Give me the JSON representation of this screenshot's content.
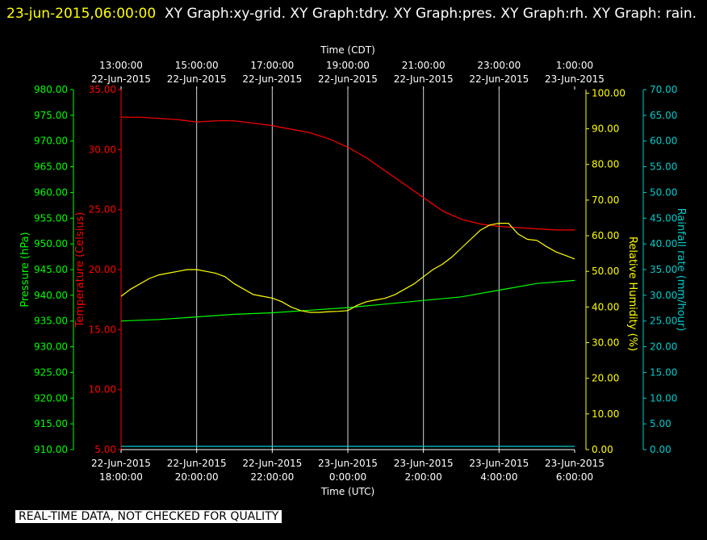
{
  "header": {
    "timestamp": "23-jun-2015,06:00:00",
    "title": "XY Graph:xy-grid.  XY Graph:tdry.  XY Graph:pres.  XY Graph:rh.  XY Graph: rain."
  },
  "footer": {
    "notice": "REAL-TIME DATA, NOT CHECKED FOR QUALITY"
  },
  "colors": {
    "background": "#000000",
    "grid": "#c8d8e6",
    "temperature": "#ff0000",
    "pressure": "#00ff00",
    "humidity": "#ffff00",
    "rain": "#00cccc",
    "text": "#ffffff"
  },
  "chart_data": {
    "type": "line",
    "top_axis": {
      "label": "Time (CDT)",
      "ticks": [
        {
          "time": "13:00:00",
          "date": "22-Jun-2015"
        },
        {
          "time": "15:00:00",
          "date": "22-Jun-2015"
        },
        {
          "time": "17:00:00",
          "date": "22-Jun-2015"
        },
        {
          "time": "19:00:00",
          "date": "22-Jun-2015"
        },
        {
          "time": "21:00:00",
          "date": "22-Jun-2015"
        },
        {
          "time": "23:00:00",
          "date": "22-Jun-2015"
        },
        {
          "time": "1:00:00",
          "date": "23-Jun-2015"
        }
      ]
    },
    "bottom_axis": {
      "label": "Time (UTC)",
      "range": [
        "2015-06-22 18:00",
        "2015-06-23 06:00"
      ],
      "ticks": [
        {
          "date": "22-Jun-2015",
          "time": "18:00:00"
        },
        {
          "date": "22-Jun-2015",
          "time": "20:00:00"
        },
        {
          "date": "22-Jun-2015",
          "time": "22:00:00"
        },
        {
          "date": "23-Jun-2015",
          "time": "0:00:00"
        },
        {
          "date": "23-Jun-2015",
          "time": "2:00:00"
        },
        {
          "date": "23-Jun-2015",
          "time": "4:00:00"
        },
        {
          "date": "23-Jun-2015",
          "time": "6:00:00"
        }
      ]
    },
    "axes": {
      "pressure": {
        "label": "Pressure (hPa)",
        "range": [
          910,
          980
        ],
        "ticks": [
          "910.00",
          "915.00",
          "920.00",
          "925.00",
          "930.00",
          "935.00",
          "940.00",
          "945.00",
          "950.00",
          "955.00",
          "960.00",
          "965.00",
          "970.00",
          "975.00",
          "980.00"
        ]
      },
      "temperature": {
        "label": "Temperature (Celsius)",
        "range": [
          5,
          35
        ],
        "ticks": [
          "5.00",
          "10.00",
          "15.00",
          "20.00",
          "25.00",
          "30.00",
          "35.00"
        ]
      },
      "humidity": {
        "label": "Relative Humidity (%)",
        "range": [
          0,
          101
        ],
        "ticks": [
          "0.00",
          "10.00",
          "20.00",
          "30.00",
          "40.00",
          "50.00",
          "60.00",
          "70.00",
          "80.00",
          "90.00",
          "100.00"
        ]
      },
      "rain": {
        "label": "Rainfall rate (mm/hour)",
        "range": [
          0,
          70
        ],
        "ticks": [
          "0.00",
          "5.00",
          "10.00",
          "15.00",
          "20.00",
          "25.00",
          "30.00",
          "35.00",
          "40.00",
          "45.00",
          "50.00",
          "55.00",
          "60.00",
          "65.00",
          "70.00"
        ]
      }
    },
    "grid": true,
    "series": [
      {
        "axis": "temperature",
        "color": "#ff0000",
        "x_hours": [
          0,
          0.5,
          1,
          1.5,
          2,
          2.5,
          3,
          3.5,
          4,
          4.5,
          5,
          5.5,
          6,
          6.5,
          7,
          7.5,
          8,
          8.5,
          9,
          9.5,
          10,
          10.5,
          11,
          11.5,
          12
        ],
        "values": [
          32.7,
          32.7,
          32.6,
          32.5,
          32.3,
          32.4,
          32.4,
          32.2,
          32.0,
          31.7,
          31.4,
          30.9,
          30.2,
          29.3,
          28.2,
          27.1,
          26.0,
          24.9,
          24.2,
          23.8,
          23.6,
          23.5,
          23.4,
          23.3,
          23.3
        ]
      },
      {
        "axis": "pressure",
        "color": "#00ff00",
        "x_hours": [
          0,
          1,
          2,
          3,
          4,
          5,
          6,
          7,
          8,
          9,
          10,
          11,
          12
        ],
        "values": [
          935.0,
          935.3,
          935.8,
          936.3,
          936.6,
          937.1,
          937.6,
          938.3,
          939.0,
          939.7,
          941.0,
          942.3,
          942.9
        ]
      },
      {
        "axis": "humidity",
        "color": "#ffff00",
        "x_hours": [
          0,
          0.25,
          0.5,
          0.75,
          1,
          1.25,
          1.5,
          1.75,
          2,
          2.25,
          2.5,
          2.75,
          3,
          3.25,
          3.5,
          3.75,
          4,
          4.25,
          4.5,
          4.75,
          5,
          5.25,
          5.5,
          5.75,
          6,
          6.25,
          6.5,
          6.75,
          7,
          7.25,
          7.5,
          7.75,
          8,
          8.25,
          8.5,
          8.75,
          9,
          9.25,
          9.5,
          9.75,
          10,
          10.25,
          10.5,
          10.75,
          11,
          11.25,
          11.5,
          11.75,
          12
        ],
        "values": [
          43,
          45,
          46.5,
          48,
          49,
          49.5,
          50,
          50.5,
          50.5,
          50,
          49.5,
          48.5,
          46.5,
          45,
          43.5,
          43,
          42.5,
          41.5,
          40,
          39,
          38.5,
          38.5,
          38.7,
          38.8,
          39,
          40.5,
          41.5,
          42,
          42.5,
          43.5,
          45,
          46.5,
          48.5,
          50.5,
          52,
          54,
          56.5,
          59,
          61.5,
          63,
          63.5,
          63.5,
          60.5,
          59,
          58.7,
          57,
          55.5,
          54.5,
          53.5
        ]
      },
      {
        "axis": "rain",
        "color": "#00cccc",
        "x_hours": [
          0,
          12
        ],
        "values": [
          0,
          0
        ]
      }
    ]
  }
}
